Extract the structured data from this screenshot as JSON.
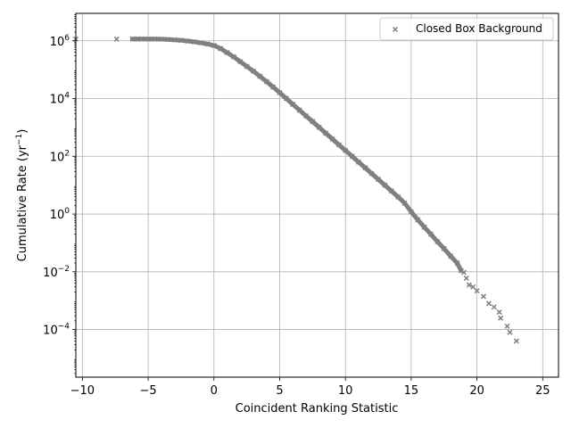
{
  "chart_data": {
    "type": "scatter",
    "xlabel": "Coincident Ranking Statistic",
    "ylabel_main": "Cumulative Rate (yr",
    "ylabel_sup": "−1",
    "ylabel_end": ")",
    "xlim": [
      -10.5,
      26.2
    ],
    "ylim_log10": [
      -5.65,
      6.95
    ],
    "y_scale": "log",
    "grid": true,
    "legend_position": "top-right",
    "marker": "x",
    "marker_color": "#808080",
    "xticks": [
      -10,
      -5,
      0,
      5,
      10,
      15,
      20,
      25
    ],
    "xtick_labels": [
      "−10",
      "−5",
      "0",
      "5",
      "10",
      "15",
      "20",
      "25"
    ],
    "yticks_log10": [
      -4,
      -2,
      0,
      2,
      4,
      6
    ],
    "ytick_labels": [
      {
        "base": "10",
        "exp": "−4"
      },
      {
        "base": "10",
        "exp": "−2"
      },
      {
        "base": "10",
        "exp": "0"
      },
      {
        "base": "10",
        "exp": "2"
      },
      {
        "base": "10",
        "exp": "4"
      },
      {
        "base": "10",
        "exp": "6"
      }
    ],
    "series": [
      {
        "name": "Closed Box Background",
        "points": [
          [
            -10.5,
            1150000.0
          ],
          [
            -7.4,
            1150000.0
          ],
          [
            -6.2,
            1150000.0
          ],
          [
            -5.8,
            1150000.0
          ],
          [
            -5.5,
            1160000.0
          ],
          [
            -5.0,
            1150000.0
          ],
          [
            -4.5,
            1150000.0
          ],
          [
            -4.0,
            1140000.0
          ],
          [
            -3.5,
            1120000.0
          ],
          [
            -3.0,
            1080000.0
          ],
          [
            -2.5,
            1040000.0
          ],
          [
            -2.0,
            980000.0
          ],
          [
            -1.5,
            920000.0
          ],
          [
            -1.0,
            850000.0
          ],
          [
            -0.5,
            780000.0
          ],
          [
            0.0,
            690000.0
          ],
          [
            0.5,
            540000.0
          ],
          [
            1.0,
            390000.0
          ],
          [
            1.5,
            280000.0
          ],
          [
            2.0,
            190000.0
          ],
          [
            2.5,
            130000.0
          ],
          [
            3.0,
            89000.0
          ],
          [
            3.5,
            59000.0
          ],
          [
            4.0,
            39000.0
          ],
          [
            4.5,
            25000.0
          ],
          [
            5.0,
            16000.0
          ],
          [
            5.5,
            10000.0
          ],
          [
            6.0,
            6300.0
          ],
          [
            6.5,
            4000.0
          ],
          [
            7.0,
            2500.0
          ],
          [
            7.5,
            1600.0
          ],
          [
            8.0,
            1000.0
          ],
          [
            8.5,
            630.0
          ],
          [
            9.0,
            400.0
          ],
          [
            9.5,
            250.0
          ],
          [
            10.0,
            160.0
          ],
          [
            10.5,
            100.0
          ],
          [
            11.0,
            63
          ],
          [
            11.5,
            40
          ],
          [
            12.0,
            25
          ],
          [
            12.5,
            16
          ],
          [
            13.0,
            10
          ],
          [
            13.5,
            6.3
          ],
          [
            14.0,
            3.9
          ],
          [
            14.5,
            2.4
          ],
          [
            15.0,
            1.2
          ],
          [
            15.5,
            0.63
          ],
          [
            16.0,
            0.35
          ],
          [
            16.5,
            0.2
          ],
          [
            17.0,
            0.11
          ],
          [
            17.5,
            0.063
          ],
          [
            18.0,
            0.035
          ],
          [
            18.5,
            0.02
          ],
          [
            18.8,
            0.011
          ],
          [
            19.0,
            0.0095
          ],
          [
            19.2,
            0.006
          ],
          [
            19.4,
            0.0035
          ],
          [
            19.7,
            0.003
          ],
          [
            20.0,
            0.0022
          ],
          [
            20.5,
            0.0014
          ],
          [
            20.9,
            0.0008
          ],
          [
            21.3,
            0.0006
          ],
          [
            21.7,
            0.0004
          ],
          [
            21.8,
            0.00025
          ],
          [
            22.3,
            0.00013
          ],
          [
            22.5,
            8e-05
          ],
          [
            23.0,
            4e-05
          ]
        ]
      }
    ]
  }
}
